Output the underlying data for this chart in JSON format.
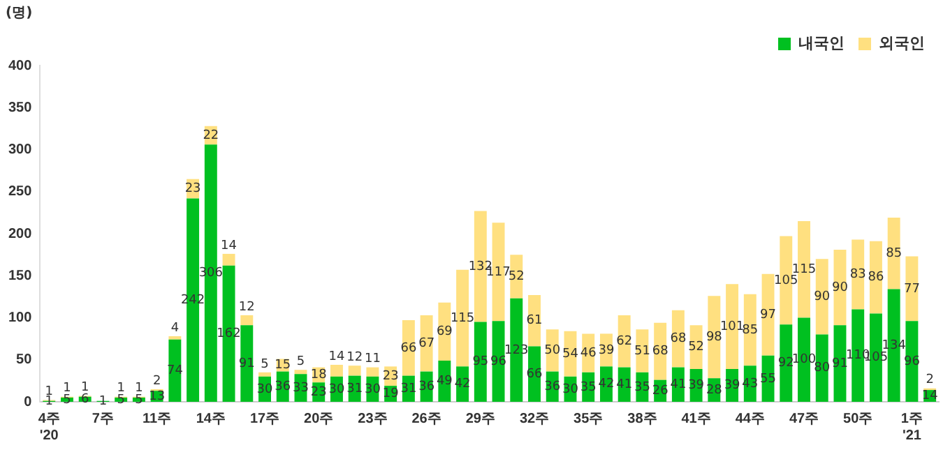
{
  "chart_data": {
    "type": "bar",
    "stacked": true,
    "ylabel": "(명)",
    "legend": "top right",
    "data_labels": true,
    "grid": false,
    "categories": [
      "4주\n'20",
      null,
      null,
      "7주",
      null,
      null,
      "11주",
      null,
      null,
      "14주",
      null,
      null,
      "17주",
      null,
      null,
      "20주",
      null,
      null,
      "23주",
      null,
      null,
      "26주",
      null,
      null,
      "29주",
      null,
      null,
      "32주",
      null,
      null,
      "35주",
      null,
      null,
      "38주",
      null,
      null,
      "41주",
      null,
      null,
      "44주",
      null,
      null,
      "47주",
      null,
      null,
      "50주",
      null,
      null,
      "1주\n'21",
      null
    ],
    "ylim": [
      0,
      400
    ],
    "yticks": [
      0,
      50,
      100,
      150,
      200,
      250,
      300,
      350,
      400
    ],
    "series": [
      {
        "name": "내국인",
        "color": "#00c020",
        "values": [
          1,
          5,
          6,
          1,
          5,
          5,
          13,
          74,
          242,
          306,
          162,
          91,
          30,
          36,
          33,
          23,
          30,
          31,
          30,
          19,
          31,
          36,
          49,
          42,
          95,
          96,
          123,
          66,
          36,
          30,
          35,
          42,
          41,
          35,
          26,
          41,
          39,
          28,
          39,
          43,
          55,
          92,
          100,
          80,
          91,
          110,
          105,
          134,
          96,
          14
        ]
      },
      {
        "name": "외국인",
        "color": "#ffe080",
        "values": [
          1,
          1,
          1,
          null,
          1,
          1,
          2,
          4,
          23,
          22,
          14,
          12,
          5,
          15,
          5,
          18,
          14,
          12,
          11,
          23,
          66,
          67,
          69,
          115,
          132,
          117,
          52,
          61,
          50,
          54,
          46,
          39,
          62,
          51,
          68,
          68,
          52,
          98,
          101,
          85,
          97,
          105,
          115,
          90,
          90,
          83,
          86,
          85,
          77,
          2
        ]
      }
    ]
  }
}
